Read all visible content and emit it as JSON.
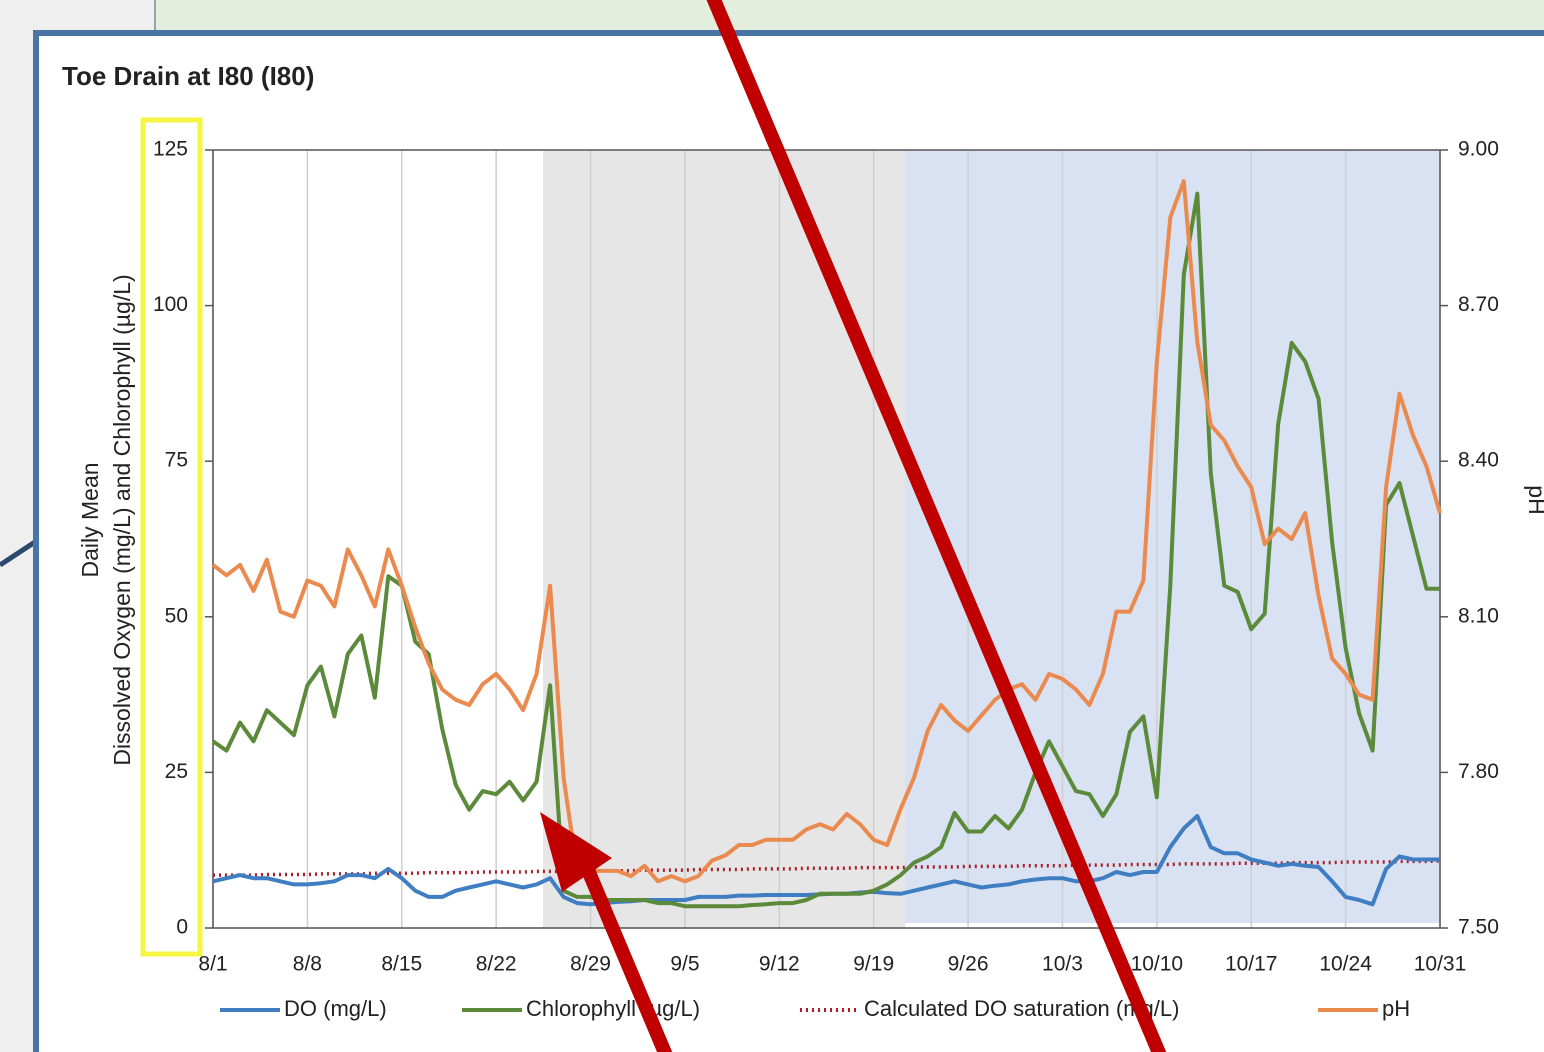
{
  "chart_data": {
    "type": "line",
    "title": "Toe Drain at I80 (I80)",
    "y_label": [
      "Daily Mean",
      "Dissolved Oxygen (mg/L) and Chlorophyll (µg/L)"
    ],
    "y2_label": "pH",
    "categories": [
      "8/1",
      null,
      null,
      null,
      null,
      null,
      null,
      "8/8",
      null,
      null,
      null,
      null,
      null,
      null,
      "8/15",
      null,
      null,
      null,
      null,
      null,
      null,
      "8/22",
      null,
      null,
      null,
      null,
      null,
      null,
      "8/29",
      null,
      null,
      null,
      null,
      null,
      null,
      "9/5",
      null,
      null,
      null,
      null,
      null,
      null,
      "9/12",
      null,
      null,
      null,
      null,
      null,
      null,
      "9/19",
      null,
      null,
      null,
      null,
      null,
      null,
      "9/26",
      null,
      null,
      null,
      null,
      null,
      null,
      "10/3",
      null,
      null,
      null,
      null,
      null,
      null,
      "10/10",
      null,
      null,
      null,
      null,
      null,
      null,
      "10/17",
      null,
      null,
      null,
      null,
      null,
      null,
      "10/24",
      null,
      null,
      null,
      null,
      null,
      null,
      "10/31"
    ],
    "ylim": [
      0,
      125
    ],
    "yticks": [
      0,
      25,
      50,
      75,
      100,
      125
    ],
    "y2lim": [
      7.5,
      9
    ],
    "y2ticks": [
      {
        "value": 7.5,
        "label": "7.50"
      },
      {
        "value": 7.8,
        "label": "7.80"
      },
      {
        "value": 8.1,
        "label": "8.10"
      },
      {
        "value": 8.4,
        "label": "8.40"
      },
      {
        "value": 8.7,
        "label": "8.70"
      },
      {
        "value": 9,
        "label": "9.00"
      }
    ],
    "grid": true,
    "legend": "bottom",
    "series": [
      {
        "name": "DO (mg/L)",
        "color": "#3f7ec2",
        "style": "solid",
        "values": [
          7.5,
          8,
          8.5,
          8,
          8,
          7.5,
          7,
          7,
          7.2,
          7.5,
          8.5,
          8.5,
          8,
          9.5,
          8,
          6,
          5,
          5,
          6,
          6.5,
          7,
          7.5,
          7,
          6.5,
          7,
          8,
          5,
          4,
          3.8,
          4,
          4.2,
          4.3,
          4.5,
          4.5,
          4.5,
          4.5,
          5,
          5,
          5,
          5.2,
          5.2,
          5.3,
          5.3,
          5.3,
          5.3,
          5.4,
          5.5,
          5.5,
          5.7,
          5.8,
          5.6,
          5.5,
          6,
          6.5,
          7,
          7.5,
          7,
          6.5,
          6.8,
          7,
          7.5,
          7.8,
          8,
          8,
          7.5,
          7.5,
          8,
          9,
          8.5,
          9,
          9,
          13,
          16,
          18,
          13,
          12,
          12,
          11,
          10.5,
          10,
          10.3,
          10,
          9.8,
          7.5,
          5,
          4.5,
          3.8,
          9.5,
          11.5,
          11,
          11,
          11
        ]
      },
      {
        "name": "Chlorophyll (µg/L)",
        "color": "#5b8a3a",
        "style": "solid",
        "values": [
          30,
          28.5,
          33,
          30,
          35,
          33,
          31,
          39,
          42,
          34,
          44,
          47,
          37,
          56.5,
          55,
          46,
          44,
          32,
          23,
          19,
          22,
          21.5,
          23.5,
          20.5,
          23.5,
          39,
          6,
          5,
          5,
          4.5,
          4.5,
          4.5,
          4.5,
          4,
          4,
          3.5,
          3.5,
          3.5,
          3.5,
          3.5,
          3.7,
          3.8,
          4,
          4,
          4.5,
          5.5,
          5.5,
          5.5,
          5.5,
          6,
          7,
          8.5,
          10.5,
          11.5,
          13,
          18.5,
          15.5,
          15.5,
          18,
          16,
          19,
          25,
          30,
          26,
          22,
          21.5,
          18,
          21.5,
          31.5,
          34,
          21,
          55,
          105,
          118,
          73,
          55,
          54,
          48,
          50.5,
          81,
          94,
          91,
          85,
          62,
          45,
          34.5,
          28.5,
          68,
          71.5,
          63,
          54.5,
          54.5
        ]
      },
      {
        "name": "Calculated DO saturation (mg/L)",
        "color": "#a8202c",
        "style": "dotted",
        "values": [
          8.5,
          8.5,
          8.5,
          8.5,
          8.6,
          8.6,
          8.6,
          8.6,
          8.7,
          8.7,
          8.7,
          8.7,
          8.8,
          8.8,
          8.8,
          8.8,
          8.9,
          8.9,
          8.9,
          8.9,
          9,
          9,
          9,
          9,
          9.1,
          9.1,
          9.1,
          9.1,
          9.2,
          9.2,
          9.2,
          9.2,
          9.3,
          9.3,
          9.3,
          9.3,
          9.4,
          9.4,
          9.4,
          9.4,
          9.5,
          9.5,
          9.5,
          9.5,
          9.6,
          9.6,
          9.6,
          9.6,
          9.7,
          9.7,
          9.7,
          9.7,
          9.8,
          9.8,
          9.8,
          9.8,
          9.9,
          9.9,
          9.9,
          9.9,
          10,
          10,
          10,
          10,
          10.1,
          10.1,
          10.1,
          10.1,
          10.2,
          10.2,
          10.2,
          10.2,
          10.3,
          10.3,
          10.3,
          10.3,
          10.4,
          10.4,
          10.4,
          10.4,
          10.5,
          10.5,
          10.5,
          10.5,
          10.6,
          10.6,
          10.6,
          10.6,
          10.7,
          10.7,
          10.7,
          10.8
        ]
      },
      {
        "name": "pH",
        "color": "#eb8a4e",
        "style": "solid",
        "axis": "y2",
        "values": [
          8.2,
          8.18,
          8.2,
          8.15,
          8.21,
          8.11,
          8.1,
          8.17,
          8.16,
          8.12,
          8.23,
          8.18,
          8.12,
          8.23,
          8.16,
          8.08,
          8.01,
          7.96,
          7.94,
          7.93,
          7.97,
          7.99,
          7.96,
          7.92,
          7.99,
          8.16,
          7.79,
          7.61,
          7.61,
          7.61,
          7.61,
          7.6,
          7.62,
          7.59,
          7.6,
          7.59,
          7.6,
          7.63,
          7.64,
          7.66,
          7.66,
          7.67,
          7.67,
          7.67,
          7.69,
          7.7,
          7.69,
          7.72,
          7.7,
          7.67,
          7.66,
          7.73,
          7.79,
          7.88,
          7.93,
          7.9,
          7.88,
          7.91,
          7.94,
          7.96,
          7.97,
          7.94,
          7.99,
          7.98,
          7.96,
          7.93,
          7.99,
          8.11,
          8.11,
          8.17,
          8.59,
          8.87,
          8.94,
          8.63,
          8.47,
          8.44,
          8.39,
          8.35,
          8.24,
          8.27,
          8.25,
          8.3,
          8.14,
          8.02,
          7.99,
          7.95,
          7.94,
          8.35,
          8.53,
          8.45,
          8.39,
          8.3
        ]
      }
    ]
  }
}
